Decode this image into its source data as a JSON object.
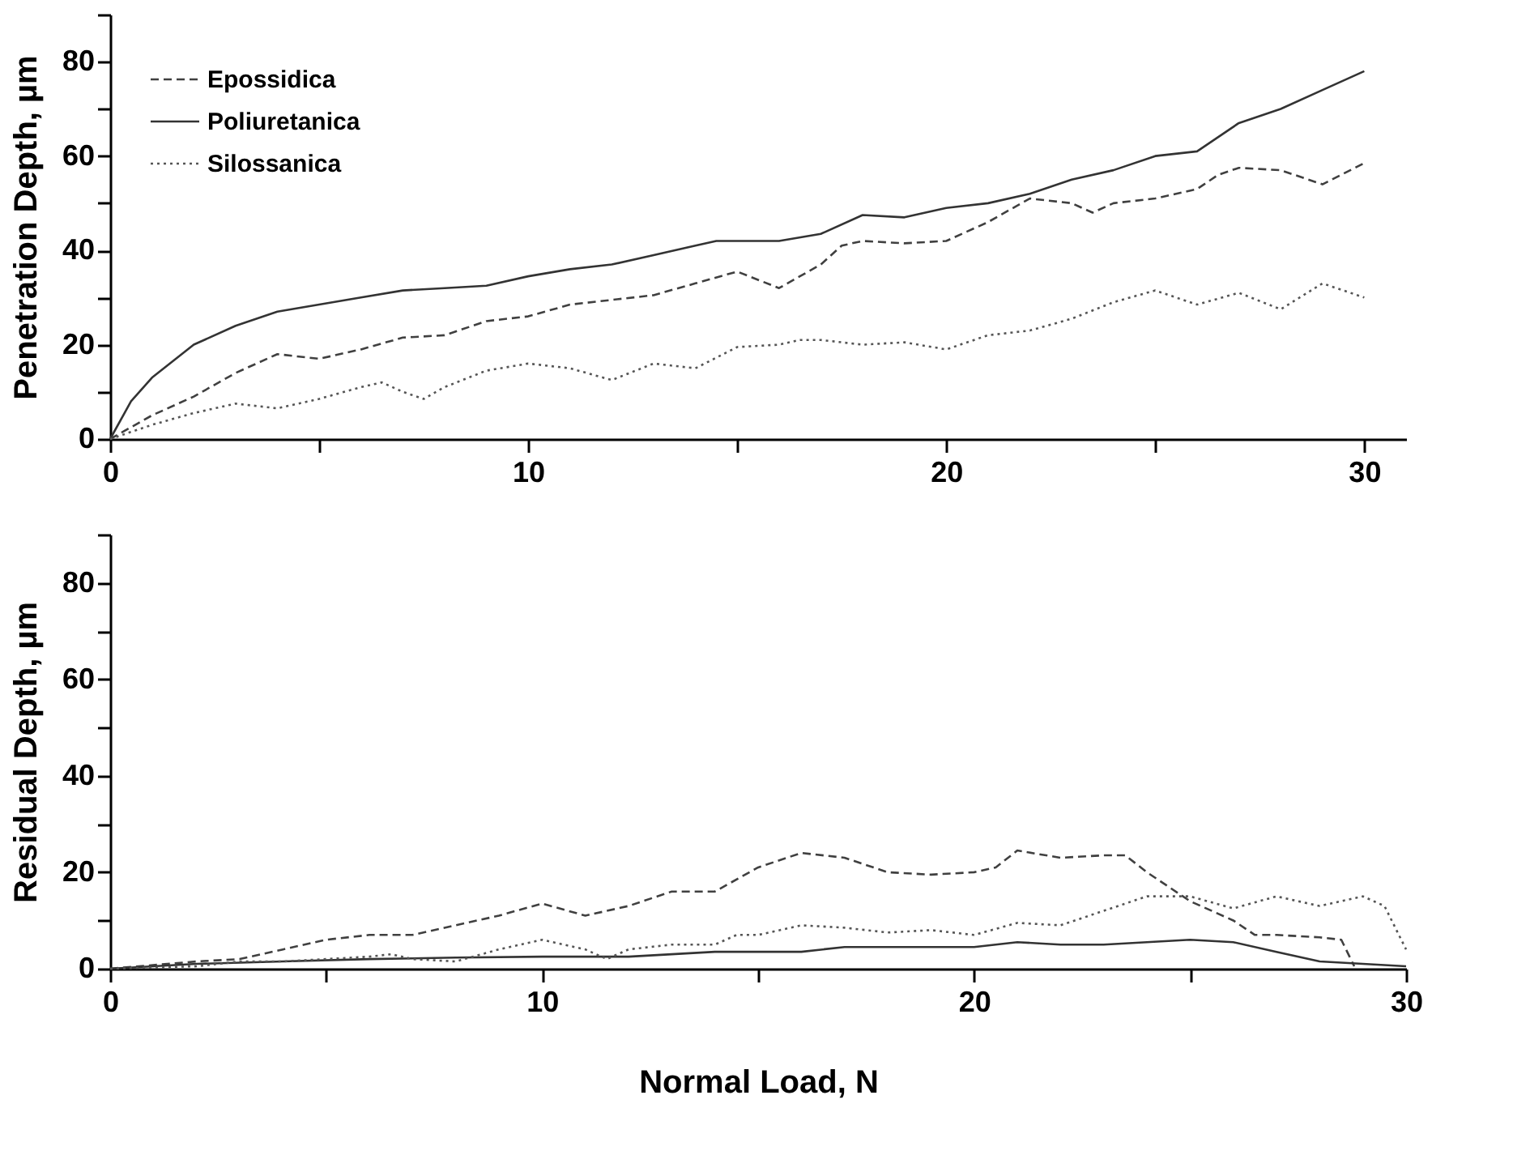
{
  "chart_data": [
    {
      "type": "line",
      "ylabel": "Penetration Depth, µm",
      "xlim": [
        0,
        31
      ],
      "ylim": [
        0,
        90
      ],
      "xticks": [
        0,
        {
          "value": 5,
          "label": null
        },
        10,
        {
          "value": 15,
          "label": null
        },
        20,
        {
          "value": 25,
          "label": null
        },
        30
      ],
      "yticks": [
        0,
        {
          "value": 10,
          "label": null
        },
        20,
        {
          "value": 30,
          "label": null
        },
        40,
        {
          "value": 50,
          "label": null
        },
        60,
        {
          "value": 70,
          "label": null
        },
        80,
        {
          "value": 90,
          "label": null
        }
      ],
      "grid": false,
      "legend": "top left",
      "marker": "none",
      "series": [
        {
          "name": "Epossidica",
          "color": "#404040",
          "line_style": "dashed",
          "x": [
            0,
            1,
            2,
            3,
            4,
            5,
            6,
            7,
            8,
            9,
            10,
            11,
            12,
            13,
            14,
            15,
            16,
            17,
            17.5,
            18,
            19,
            20,
            21,
            22,
            23,
            23.5,
            24,
            25,
            26,
            26.5,
            27,
            28,
            29,
            30
          ],
          "values": [
            0,
            5,
            9,
            14,
            18,
            17,
            19,
            21.5,
            22,
            25,
            26,
            28.5,
            29.5,
            30.5,
            33,
            35.5,
            32,
            37,
            41,
            42,
            41.5,
            42,
            46,
            51,
            50,
            48,
            50,
            51,
            53,
            56,
            57.5,
            57,
            54,
            58.5
          ]
        },
        {
          "name": "Poliuretanica",
          "color": "#333333",
          "line_style": "solid",
          "x": [
            0,
            0.5,
            1,
            2,
            3,
            4,
            5,
            6,
            7,
            8,
            9,
            10,
            11,
            12,
            13,
            14,
            14.5,
            15,
            16,
            17,
            18,
            19,
            20,
            21,
            22,
            23,
            24,
            25,
            26,
            27,
            28,
            29,
            30
          ],
          "values": [
            0,
            8,
            13,
            20,
            24,
            27,
            28.5,
            30,
            31.5,
            32,
            32.5,
            34.5,
            36,
            37,
            39,
            41,
            42,
            42,
            42,
            43.5,
            47.5,
            47,
            49,
            50,
            52,
            55,
            57,
            60,
            61,
            67,
            70,
            74,
            78
          ]
        },
        {
          "name": "Silossanica",
          "color": "#555555",
          "line_style": "dotted",
          "x": [
            0,
            1,
            2,
            3,
            4,
            5,
            6,
            6.5,
            7,
            7.5,
            8,
            9,
            10,
            11,
            12,
            13,
            14,
            15,
            16,
            16.5,
            17,
            18,
            19,
            20,
            21,
            22,
            23,
            24,
            25,
            26,
            27,
            28,
            29,
            30
          ],
          "values": [
            0,
            3,
            5.5,
            7.5,
            6.5,
            8.5,
            11,
            12,
            10,
            8.5,
            11,
            14.5,
            16,
            15,
            12.5,
            16,
            15,
            19.5,
            20,
            21,
            21,
            20,
            20.5,
            19,
            22,
            23,
            25.5,
            29,
            31.5,
            28.5,
            31,
            27.5,
            33,
            30
          ]
        }
      ]
    },
    {
      "type": "line",
      "ylabel": "Residual Depth, µm",
      "xlabel": "Normal Load, N",
      "xlim": [
        0,
        30
      ],
      "ylim": [
        0,
        90
      ],
      "xticks": [
        0,
        {
          "value": 5,
          "label": null
        },
        10,
        {
          "value": 15,
          "label": null
        },
        20,
        {
          "value": 25,
          "label": null
        },
        30
      ],
      "yticks": [
        0,
        {
          "value": 10,
          "label": null
        },
        20,
        {
          "value": 30,
          "label": null
        },
        40,
        {
          "value": 50,
          "label": null
        },
        60,
        {
          "value": 70,
          "label": null
        },
        80,
        {
          "value": 90,
          "label": null
        }
      ],
      "grid": false,
      "marker": "none",
      "series": [
        {
          "color": "#404040",
          "line_style": "dashed",
          "x": [
            0,
            2,
            3,
            4,
            5,
            6,
            7,
            8,
            9,
            10,
            11,
            12,
            13,
            14,
            15,
            16,
            17,
            18,
            19,
            20,
            20.5,
            21,
            22,
            23,
            23.5,
            24,
            25,
            26,
            26.5,
            27,
            28,
            28.5,
            28.8
          ],
          "values": [
            0,
            1.5,
            2,
            4,
            6,
            7,
            7,
            9,
            11,
            13.5,
            11,
            13,
            16,
            16,
            21,
            24,
            23,
            20,
            19.5,
            20,
            21,
            24.5,
            23,
            23.5,
            23.5,
            20,
            14,
            10,
            7,
            7,
            6.5,
            6,
            0.5
          ]
        },
        {
          "color": "#333333",
          "line_style": "solid",
          "x": [
            0,
            2,
            4,
            6,
            8,
            10,
            12,
            14,
            15,
            16,
            17,
            19,
            20,
            21,
            22,
            23,
            24,
            25,
            26,
            27,
            28,
            29,
            30
          ],
          "values": [
            0,
            1,
            1.5,
            2,
            2.3,
            2.5,
            2.5,
            3.5,
            3.5,
            3.5,
            4.5,
            4.5,
            4.5,
            5.5,
            5,
            5,
            5.5,
            6,
            5.5,
            3.5,
            1.5,
            1,
            0.5
          ]
        },
        {
          "color": "#555555",
          "line_style": "dotted",
          "x": [
            0,
            2,
            3,
            4,
            5,
            6,
            6.5,
            7,
            8,
            9,
            10,
            11,
            11.5,
            12,
            13,
            14,
            14.5,
            15,
            16,
            17,
            18,
            19,
            20,
            21,
            22,
            23,
            24,
            25,
            26,
            27,
            28,
            29,
            29.5,
            30
          ],
          "values": [
            0,
            0.5,
            1.5,
            1.5,
            2,
            2.5,
            3,
            2,
            1.5,
            4,
            6,
            4,
            2,
            4,
            5,
            5,
            7,
            7,
            9,
            8.5,
            7.5,
            8,
            7,
            9.5,
            9,
            12,
            15,
            15,
            12.5,
            15,
            13,
            15,
            13,
            4
          ]
        }
      ]
    }
  ]
}
